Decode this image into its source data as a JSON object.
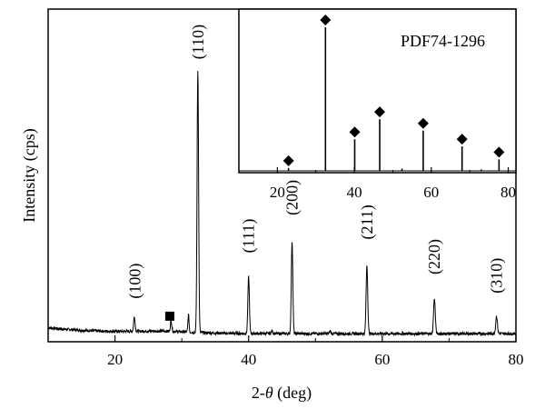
{
  "chart_data": [
    {
      "type": "line",
      "xlabel_prefix": "2-",
      "xlabel_var": "θ",
      "xlabel_suffix": " (deg)",
      "ylabel": "Intensity (cps)",
      "xlim": [
        10,
        80
      ],
      "ylim": [
        0,
        100
      ],
      "xticks": [
        20,
        40,
        60,
        80
      ],
      "yticks_shown": false,
      "baseline": 3,
      "peaks": [
        {
          "x": 22.9,
          "y": 5.5,
          "width": 0.15
        },
        {
          "x": 28.4,
          "y": 4.0,
          "width": 0.15
        },
        {
          "x": 31.0,
          "y": 6.5,
          "width": 0.12
        },
        {
          "x": 32.4,
          "y": 97.5,
          "width": 0.16
        },
        {
          "x": 40.0,
          "y": 21.0,
          "width": 0.16
        },
        {
          "x": 43.5,
          "y": 1.0,
          "width": 0.15
        },
        {
          "x": 46.5,
          "y": 34.5,
          "width": 0.16
        },
        {
          "x": 52.2,
          "y": 1.0,
          "width": 0.15
        },
        {
          "x": 57.7,
          "y": 25.5,
          "width": 0.17
        },
        {
          "x": 67.8,
          "y": 13.0,
          "width": 0.18
        },
        {
          "x": 77.1,
          "y": 6.5,
          "width": 0.18
        }
      ],
      "annotations": [
        {
          "text": "(100)",
          "x": 23.0,
          "y": 16
        },
        {
          "text": "(110)",
          "x": 32.4,
          "y": 105
        },
        {
          "text": "(111)",
          "x": 40.0,
          "y": 33
        },
        {
          "text": "(200)",
          "x": 46.5,
          "y": 47
        },
        {
          "text": "(211)",
          "x": 57.7,
          "y": 38
        },
        {
          "text": "(220)",
          "x": 67.8,
          "y": 25
        },
        {
          "text": "(310)",
          "x": 77.1,
          "y": 18
        }
      ],
      "markers": [
        {
          "shape": "square",
          "x": 28.2,
          "y": 9.5
        }
      ]
    },
    {
      "type": "bar",
      "title": "PDF74-1296",
      "xlim": [
        10,
        82
      ],
      "ylim": [
        0,
        100
      ],
      "xticks": [
        20,
        40,
        60,
        80
      ],
      "sticks": [
        {
          "x": 22.9,
          "y": 2
        },
        {
          "x": 32.5,
          "y": 100
        },
        {
          "x": 40.1,
          "y": 22
        },
        {
          "x": 46.6,
          "y": 36
        },
        {
          "x": 52.4,
          "y": 1.5
        },
        {
          "x": 57.9,
          "y": 28
        },
        {
          "x": 68.0,
          "y": 17
        },
        {
          "x": 73.0,
          "y": 1
        },
        {
          "x": 77.6,
          "y": 8
        }
      ],
      "marked": [
        {
          "x": 22.9,
          "y": 2
        },
        {
          "x": 32.5,
          "y": 100
        },
        {
          "x": 40.1,
          "y": 22
        },
        {
          "x": 46.6,
          "y": 36
        },
        {
          "x": 57.9,
          "y": 28
        },
        {
          "x": 68.0,
          "y": 17
        },
        {
          "x": 77.6,
          "y": 8
        }
      ]
    }
  ]
}
